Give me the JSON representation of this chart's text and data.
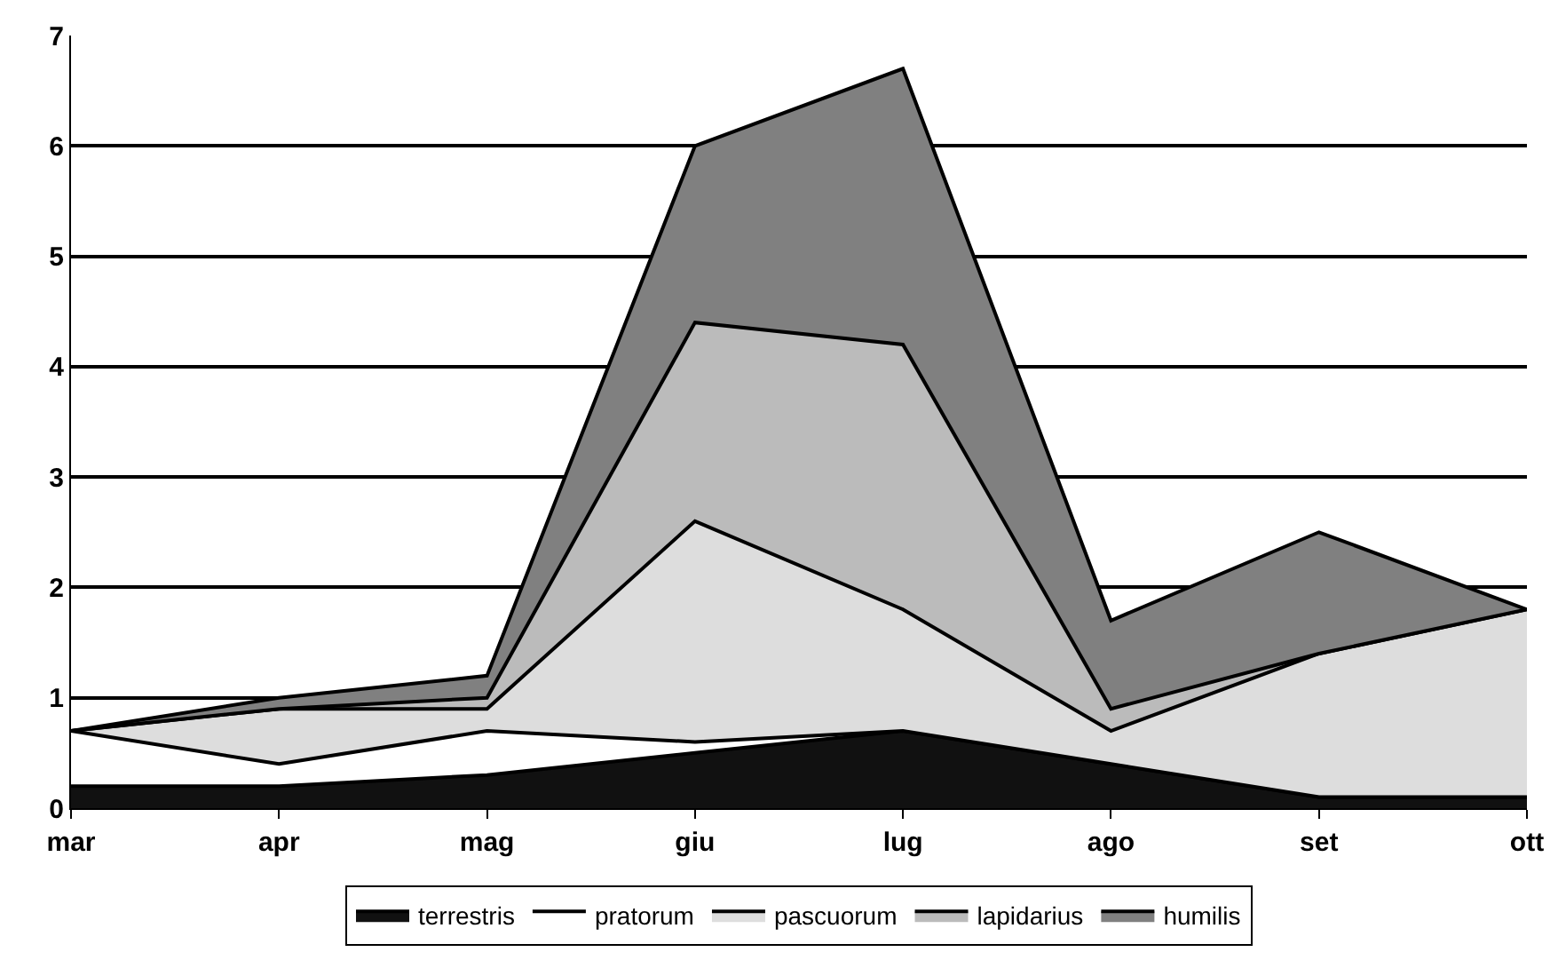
{
  "chart_data": {
    "type": "area",
    "stacked": true,
    "categories": [
      "mar",
      "apr",
      "mag",
      "giu",
      "lug",
      "ago",
      "set",
      "ott"
    ],
    "series": [
      {
        "name": "terrestris",
        "color": "#111111",
        "values": [
          0.2,
          0.2,
          0.3,
          0.5,
          0.7,
          0.4,
          0.1,
          0.1
        ]
      },
      {
        "name": "pratorum",
        "color": "#ffffff",
        "values": [
          0.5,
          0.2,
          0.4,
          0.1,
          0.0,
          0.0,
          0.0,
          0.0
        ]
      },
      {
        "name": "pascuorum",
        "color": "#dddddd",
        "values": [
          0.0,
          0.5,
          0.2,
          2.0,
          1.1,
          0.3,
          1.3,
          1.7
        ]
      },
      {
        "name": "lapidarius",
        "color": "#bbbbbb",
        "values": [
          0.0,
          0.0,
          0.1,
          1.8,
          2.4,
          0.2,
          0.0,
          0.0
        ]
      },
      {
        "name": "humilis",
        "color": "#808080",
        "values": [
          0.0,
          0.1,
          0.2,
          1.6,
          2.5,
          0.8,
          1.1,
          0.0
        ]
      }
    ],
    "ylim": [
      0,
      7
    ],
    "yticks": [
      0,
      1,
      2,
      3,
      4,
      5,
      6,
      7
    ],
    "grid": "y",
    "legend": "bottom"
  }
}
